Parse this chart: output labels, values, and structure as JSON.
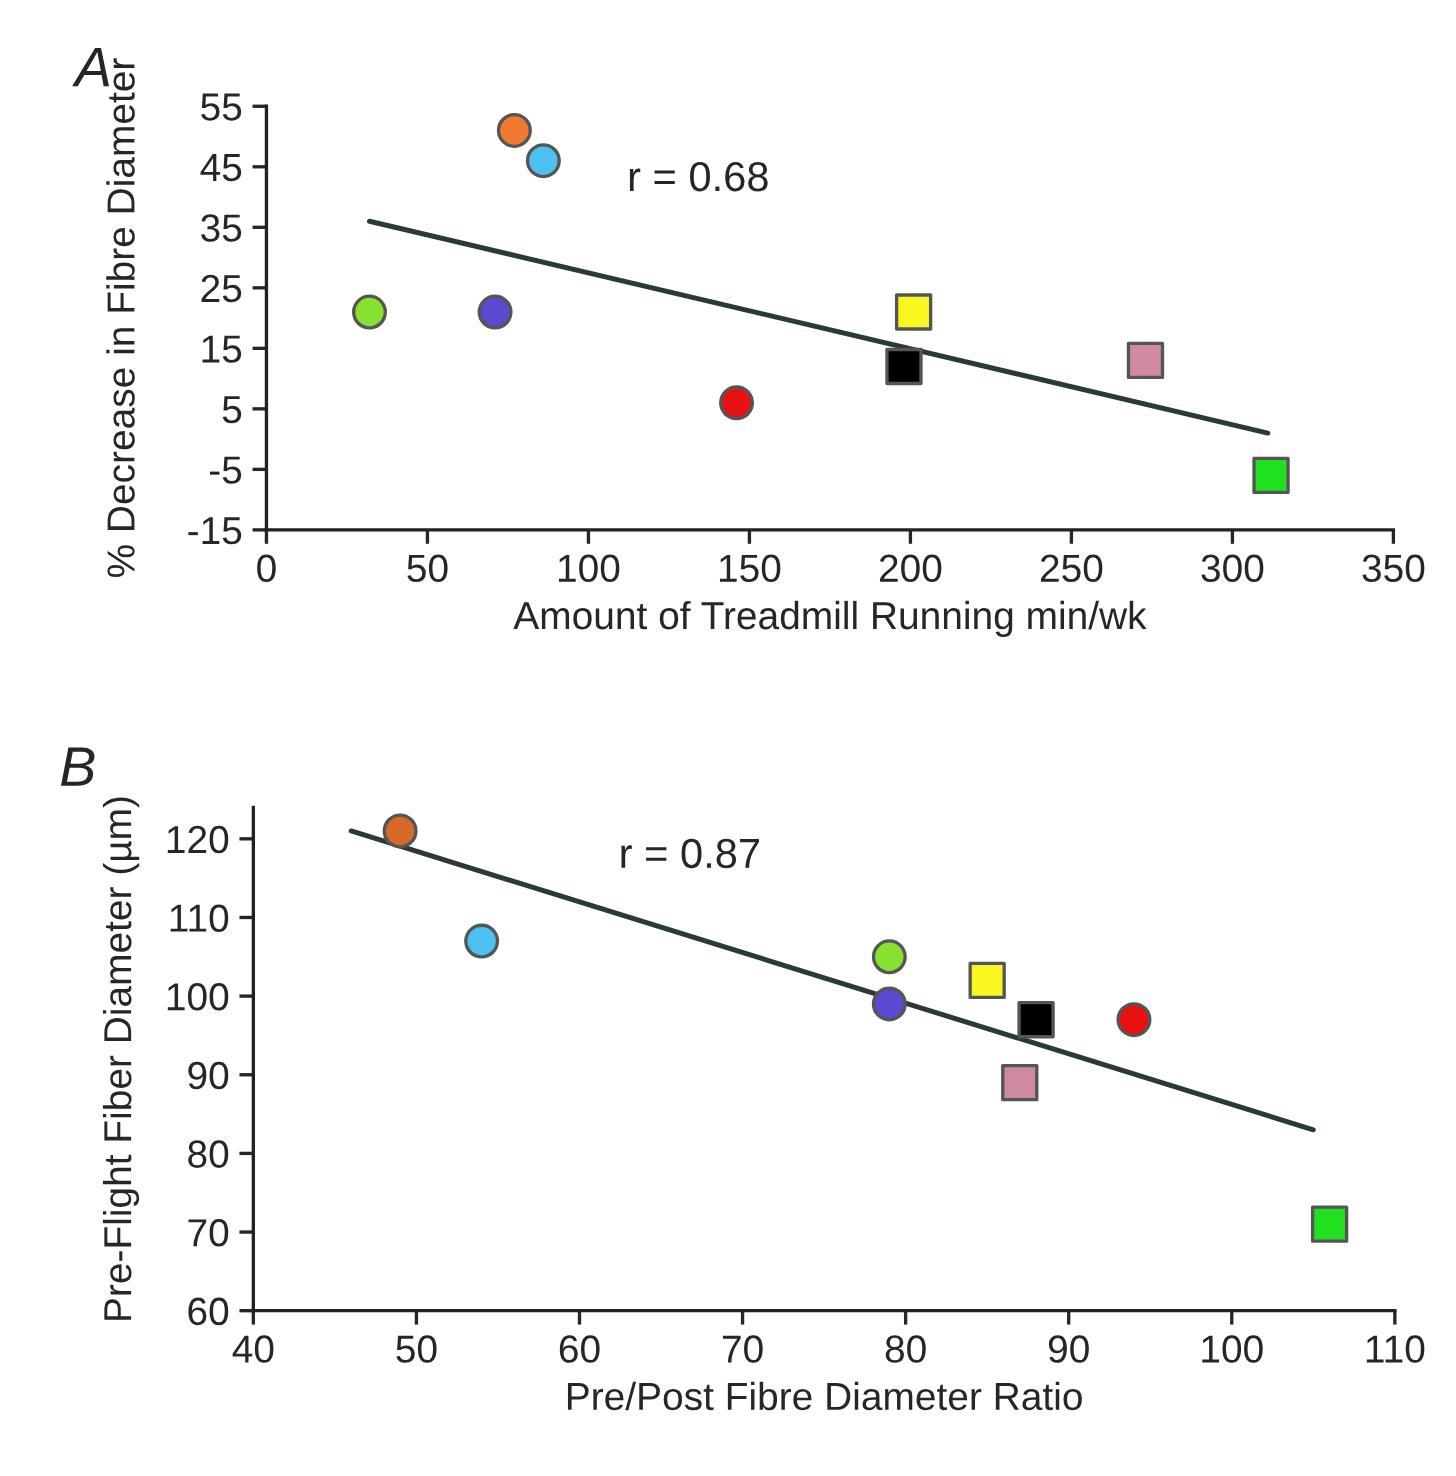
{
  "chart_data": [
    {
      "type": "scatter",
      "title": "A",
      "xlabel": "Amount of Treadmill Running min/wk",
      "ylabel": "% Decrease in Fibre Diameter",
      "xlim": [
        0,
        350
      ],
      "xticks": [
        0,
        50,
        100,
        150,
        200,
        250,
        300,
        350
      ],
      "ylim": [
        -15,
        55
      ],
      "yticks": [
        -15,
        -5,
        5,
        15,
        25,
        35,
        45,
        55
      ],
      "grid": false,
      "legend": false,
      "annotations": [
        "r = 0.68"
      ],
      "series": [
        {
          "x": [
            32
          ],
          "values": [
            21
          ],
          "color": "#88e030",
          "marker": "circle"
        },
        {
          "x": [
            71
          ],
          "values": [
            21
          ],
          "color": "#5a4ad0",
          "marker": "circle"
        },
        {
          "x": [
            77
          ],
          "values": [
            51
          ],
          "color": "#f07a30",
          "marker": "circle"
        },
        {
          "x": [
            86
          ],
          "values": [
            46
          ],
          "color": "#4cc0f0",
          "marker": "circle"
        },
        {
          "x": [
            146
          ],
          "values": [
            6
          ],
          "color": "#e81010",
          "marker": "circle"
        },
        {
          "x": [
            198
          ],
          "values": [
            12
          ],
          "color": "#000000",
          "marker": "square"
        },
        {
          "x": [
            201
          ],
          "values": [
            21
          ],
          "color": "#f8f820",
          "marker": "square"
        },
        {
          "x": [
            273
          ],
          "values": [
            13
          ],
          "color": "#d08aa0",
          "marker": "square"
        },
        {
          "x": [
            312
          ],
          "values": [
            -6
          ],
          "color": "#20e020",
          "marker": "square"
        },
        {
          "type": "line",
          "x": [
            32,
            311
          ],
          "values": [
            36,
            1
          ],
          "color": "#2a3a3a",
          "marker": "none",
          "line_style": "solid"
        }
      ]
    },
    {
      "type": "scatter",
      "title": "B",
      "xlabel": "Pre/Post Fibre Diameter Ratio",
      "ylabel": "Pre-Flight Fiber Diameter (µm)",
      "xlim": [
        40,
        110
      ],
      "xticks": [
        40,
        50,
        60,
        70,
        80,
        90,
        100,
        110
      ],
      "ylim": [
        60,
        124
      ],
      "yticks": [
        60,
        70,
        80,
        90,
        100,
        110,
        120
      ],
      "grid": false,
      "legend": false,
      "annotations": [
        "r = 0.87"
      ],
      "series": [
        {
          "x": [
            49
          ],
          "values": [
            121
          ],
          "color": "#d86a28",
          "marker": "circle"
        },
        {
          "x": [
            54
          ],
          "values": [
            107
          ],
          "color": "#4cc0f0",
          "marker": "circle"
        },
        {
          "x": [
            79
          ],
          "values": [
            105
          ],
          "color": "#88e030",
          "marker": "circle"
        },
        {
          "x": [
            79
          ],
          "values": [
            99
          ],
          "color": "#5a4ad0",
          "marker": "circle"
        },
        {
          "x": [
            85
          ],
          "values": [
            102
          ],
          "color": "#f8f820",
          "marker": "square"
        },
        {
          "x": [
            88
          ],
          "values": [
            97
          ],
          "color": "#000000",
          "marker": "square"
        },
        {
          "x": [
            94
          ],
          "values": [
            97
          ],
          "color": "#e81010",
          "marker": "circle"
        },
        {
          "x": [
            87
          ],
          "values": [
            89
          ],
          "color": "#d08aa0",
          "marker": "square"
        },
        {
          "x": [
            106
          ],
          "values": [
            71
          ],
          "color": "#20e020",
          "marker": "square"
        },
        {
          "type": "line",
          "x": [
            46,
            105
          ],
          "values": [
            121,
            83
          ],
          "color": "#2a3a3a",
          "marker": "none",
          "line_style": "solid"
        }
      ]
    }
  ]
}
